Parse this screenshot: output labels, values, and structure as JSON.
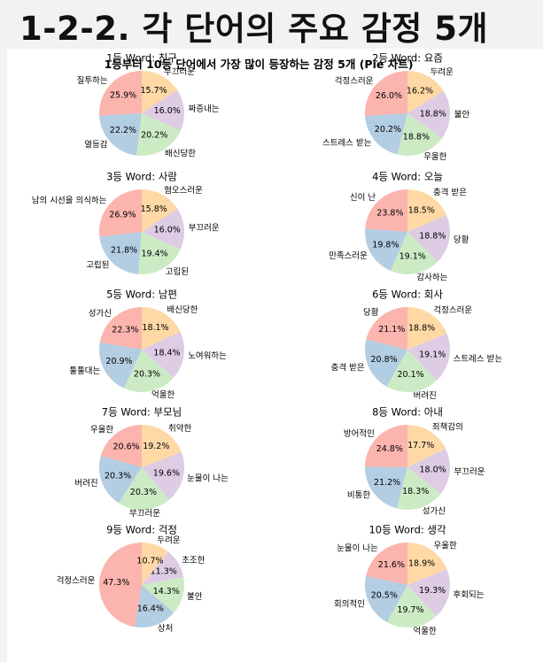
{
  "page": {
    "title": "1-2-2. 각 단어의 주요 감정 5개"
  },
  "figure": {
    "suptitle": "1등부터 10등 단어에서 가장 많이 등장하는 감정 5개 (Pie 차트)"
  },
  "palette": [
    "#fbb4ae",
    "#b3cde3",
    "#ccebc5",
    "#decbe4",
    "#fed9a6"
  ],
  "chart_data": [
    {
      "type": "pie",
      "title": "1등 Word: 친구",
      "labels": [
        "질투하는",
        "열등감",
        "배신당한",
        "짜증내는",
        "부끄러운"
      ],
      "values": [
        25.9,
        22.2,
        20.2,
        16.0,
        15.7
      ],
      "pct_labels": [
        "25.9%",
        "22.2%",
        "20.2%",
        "16.0%",
        "15.7%"
      ]
    },
    {
      "type": "pie",
      "title": "2등 Word: 요즘",
      "labels": [
        "걱정스러운",
        "스트레스 받는",
        "우울한",
        "불안",
        "두려운"
      ],
      "values": [
        26.0,
        20.2,
        18.8,
        18.8,
        16.2
      ],
      "pct_labels": [
        "26.0%",
        "20.2%",
        "18.8%",
        "18.8%",
        "16.2%"
      ]
    },
    {
      "type": "pie",
      "title": "3등 Word: 사람",
      "labels": [
        "남의 시선을 의식하는",
        "고립된",
        "고립된",
        "부끄러운",
        "혐오스러운"
      ],
      "values": [
        26.9,
        21.8,
        19.4,
        16.0,
        15.8
      ],
      "pct_labels": [
        "26.9%",
        "21.8%",
        "19.4%",
        "16.0%",
        "15.8%"
      ]
    },
    {
      "type": "pie",
      "title": "4등 Word: 오늘",
      "labels": [
        "신이 난",
        "만족스러운",
        "감사하는",
        "당황",
        "충격 받은"
      ],
      "values": [
        23.8,
        19.8,
        19.1,
        18.8,
        18.5
      ],
      "pct_labels": [
        "23.8%",
        "19.8%",
        "19.1%",
        "18.8%",
        "18.5%"
      ]
    },
    {
      "type": "pie",
      "title": "5등 Word: 남편",
      "labels": [
        "성가신",
        "툴툴대는",
        "억울한",
        "노여워하는",
        "배신당한"
      ],
      "values": [
        22.3,
        20.9,
        20.3,
        18.4,
        18.1
      ],
      "pct_labels": [
        "22.3%",
        "20.9%",
        "20.3%",
        "18.4%",
        "18.1%"
      ]
    },
    {
      "type": "pie",
      "title": "6등 Word: 회사",
      "labels": [
        "당황",
        "충격 받은",
        "버려진",
        "스트레스 받는",
        "걱정스러운"
      ],
      "values": [
        21.1,
        20.8,
        20.1,
        19.1,
        18.8
      ],
      "pct_labels": [
        "21.1%",
        "20.8%",
        "20.1%",
        "19.1%",
        "18.8%"
      ]
    },
    {
      "type": "pie",
      "title": "7등 Word: 부모님",
      "labels": [
        "우울한",
        "버려진",
        "부끄러운",
        "눈물이 나는",
        "취약한"
      ],
      "values": [
        20.6,
        20.3,
        20.3,
        19.6,
        19.2
      ],
      "pct_labels": [
        "20.6%",
        "20.3%",
        "20.3%",
        "19.6%",
        "19.2%"
      ]
    },
    {
      "type": "pie",
      "title": "8등 Word: 아내",
      "labels": [
        "방어적인",
        "비통한",
        "성가신",
        "부끄러운",
        "죄책감의"
      ],
      "values": [
        24.8,
        21.2,
        18.3,
        18.0,
        17.7
      ],
      "pct_labels": [
        "24.8%",
        "21.2%",
        "18.3%",
        "18.0%",
        "17.7%"
      ]
    },
    {
      "type": "pie",
      "title": "9등 Word: 걱정",
      "labels": [
        "걱정스러운",
        "상처",
        "불안",
        "초조한",
        "두려운"
      ],
      "values": [
        47.3,
        16.4,
        14.3,
        11.3,
        10.7
      ],
      "pct_labels": [
        "47.3%",
        "16.4%",
        "14.3%",
        "11.3%",
        "10.7%"
      ]
    },
    {
      "type": "pie",
      "title": "10등 Word: 생각",
      "labels": [
        "눈물이 나는",
        "회의적인",
        "억울한",
        "후회되는",
        "우울한"
      ],
      "values": [
        21.6,
        20.5,
        19.7,
        19.3,
        18.9
      ],
      "pct_labels": [
        "21.6%",
        "20.5%",
        "19.7%",
        "19.3%",
        "18.9%"
      ]
    }
  ]
}
